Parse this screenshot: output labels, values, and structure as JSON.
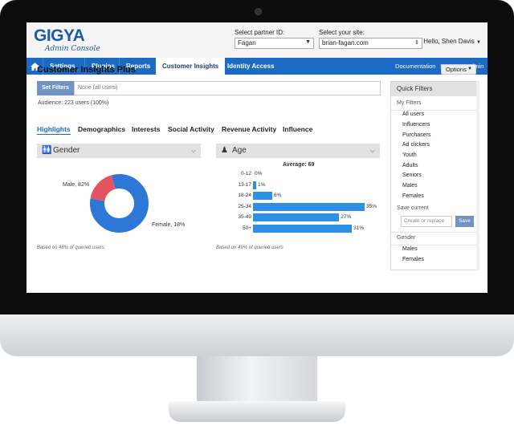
{
  "header": {
    "logo_text": "GIGYA",
    "logo_subtitle": "Admin Console",
    "partner": {
      "label": "Select partner ID:",
      "value": "Fagan"
    },
    "site": {
      "label": "Select your site:",
      "value": "brian-fagan.com"
    },
    "hello": "Hello,",
    "user": "Shen Davis"
  },
  "nav": {
    "items": [
      "Settings",
      "Plugins",
      "Reports",
      "Customer Insights",
      "Identity Access"
    ],
    "active": "Customer Insights",
    "right": [
      "Documentation",
      "Support",
      "Admin"
    ]
  },
  "page": {
    "title": "Customer Insights Plus",
    "options_label": "Options",
    "set_filters_label": "Set Filters",
    "filter_value": "None (all users)",
    "audience": "Audience: 223 users (100%)"
  },
  "tabs": [
    "Highlights",
    "Demographics",
    "Interests",
    "Social Activity",
    "Revenue Activity",
    "Influence"
  ],
  "gender_panel": {
    "title": "Gender",
    "male_label": "Male, 82%",
    "female_label": "Female, 18%",
    "note": "Based on 48% of queried users",
    "colors": {
      "male": "#2d78d6",
      "female": "#e25560"
    }
  },
  "age_panel": {
    "title": "Age",
    "average": "Average: 69",
    "note": "Based on 49% of queried users",
    "bar_color": "#2e8fe6"
  },
  "chart_data": [
    {
      "type": "pie",
      "categories": [
        "Male",
        "Female"
      ],
      "values": [
        82,
        18
      ]
    },
    {
      "type": "bar",
      "orientation": "horizontal",
      "categories": [
        "0-12",
        "13-17",
        "18-24",
        "25-34",
        "35-49",
        "50+"
      ],
      "values": [
        0,
        1,
        6,
        35,
        27,
        31
      ],
      "value_labels": [
        "0%",
        "1%",
        "6%",
        "35%",
        "27%",
        "31%"
      ]
    }
  ],
  "quick_filters": {
    "title": "Quick Filters",
    "my_filters_label": "My Filters",
    "my_filters": [
      "All users",
      "Influencers",
      "Purchasers",
      "Ad clickers",
      "Youth",
      "Adults",
      "Seniors",
      "Males",
      "Females"
    ],
    "save_current_label": "Save current",
    "save_placeholder": "Create or replace",
    "save_button": "Save",
    "gender_label": "Gender",
    "gender_items": [
      "Males",
      "Females"
    ]
  }
}
